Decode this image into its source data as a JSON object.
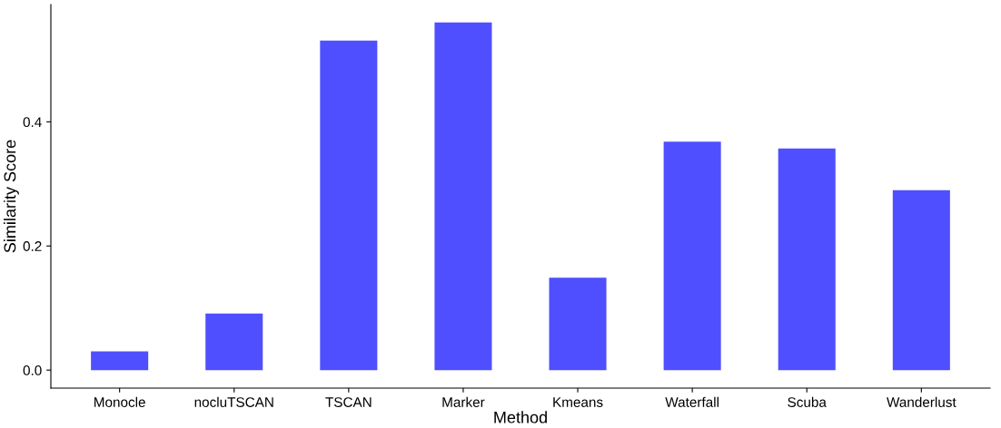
{
  "chart_data": {
    "type": "bar",
    "xlabel": "Method",
    "ylabel": "Similarity Score",
    "categories": [
      "Monocle",
      "nocluTSCAN",
      "TSCAN",
      "Marker",
      "Kmeans",
      "Waterfall",
      "Scuba",
      "Wanderlust"
    ],
    "values": [
      0.03,
      0.091,
      0.531,
      0.56,
      0.149,
      0.368,
      0.357,
      0.29
    ],
    "color": "#4f4fff",
    "ylim": [
      -0.029,
      0.589
    ],
    "yticks": [
      {
        "value": 0,
        "label": "0.0"
      },
      {
        "value": 0.2,
        "label": "0.2"
      },
      {
        "value": 0.4,
        "label": "0.4"
      }
    ],
    "grid": false
  }
}
